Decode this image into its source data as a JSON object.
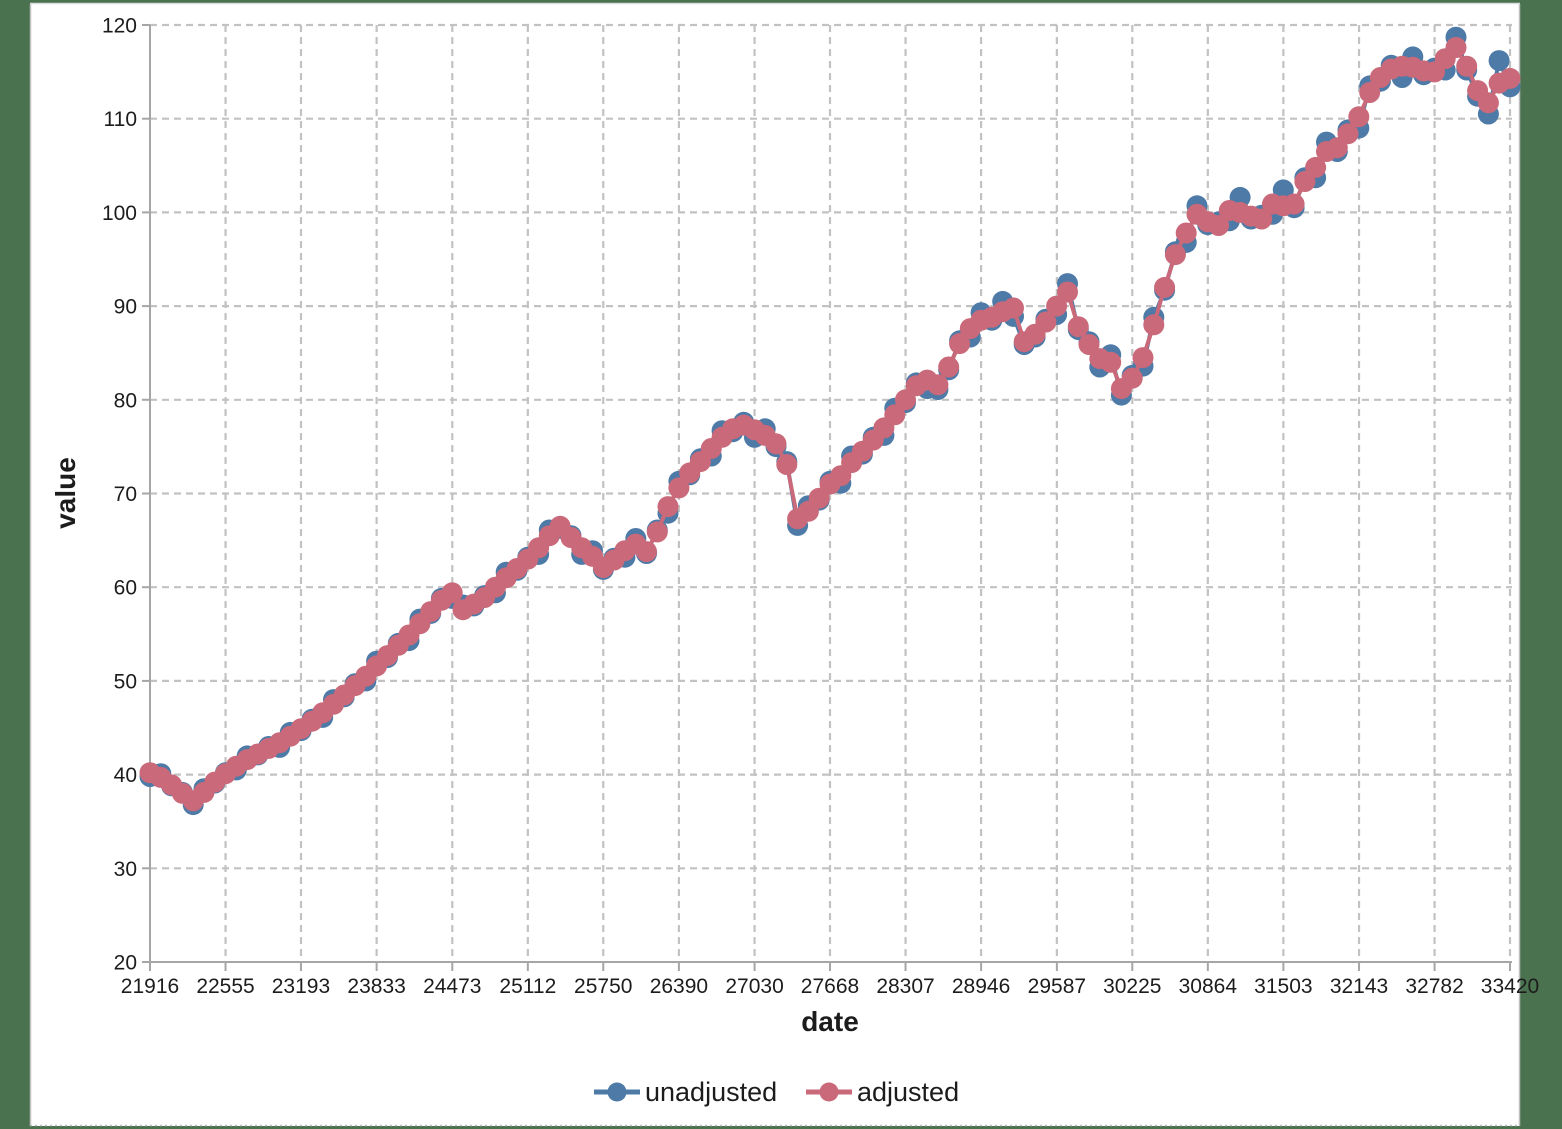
{
  "page": {
    "background_color": "#4a724f",
    "canvas_color": "#ffffff",
    "gridline_color": "#c2c2c2",
    "axis_color": "#a6a6a6"
  },
  "legend": {
    "items": [
      {
        "label": "unadjusted",
        "color": "#4d7aa6",
        "icon": "line-dot-marker"
      },
      {
        "label": "adjusted",
        "color": "#c9697a",
        "icon": "line-dot-marker"
      }
    ]
  },
  "chart_data": {
    "type": "line",
    "title": "",
    "xlabel": "date",
    "ylabel": "value",
    "xlim": [
      21916,
      33420
    ],
    "ylim": [
      20,
      120
    ],
    "grid": true,
    "legend_position": "bottom",
    "x_ticks": [
      21916,
      22555,
      23193,
      23833,
      24473,
      25112,
      25750,
      26390,
      27030,
      27668,
      28307,
      28946,
      29587,
      30225,
      30864,
      31503,
      32143,
      32782,
      33420
    ],
    "y_ticks": [
      20,
      30,
      40,
      50,
      60,
      70,
      80,
      90,
      100,
      110,
      120
    ],
    "x": [
      21916,
      22007,
      22099,
      22190,
      22281,
      22373,
      22464,
      22555,
      22646,
      22738,
      22829,
      22920,
      23012,
      23103,
      23194,
      23286,
      23377,
      23468,
      23559,
      23651,
      23742,
      23833,
      23925,
      24016,
      24107,
      24199,
      24290,
      24381,
      24472,
      24564,
      24655,
      24746,
      24838,
      24929,
      25020,
      25112,
      25203,
      25294,
      25385,
      25477,
      25568,
      25659,
      25751,
      25842,
      25933,
      26025,
      26116,
      26207,
      26298,
      26390,
      26481,
      26572,
      26664,
      26755,
      26846,
      26938,
      27029,
      27120,
      27211,
      27303,
      27394,
      27485,
      27577,
      27668,
      27759,
      27851,
      27942,
      28033,
      28124,
      28216,
      28307,
      28398,
      28490,
      28581,
      28672,
      28764,
      28855,
      28946,
      29037,
      29129,
      29220,
      29311,
      29403,
      29494,
      29585,
      29677,
      29768,
      29859,
      29950,
      30042,
      30133,
      30224,
      30316,
      30407,
      30498,
      30590,
      30681,
      30772,
      30863,
      30955,
      31046,
      31137,
      31229,
      31320,
      31411,
      31502,
      31594,
      31685,
      31776,
      31868,
      31959,
      32050,
      32141,
      32233,
      32324,
      32415,
      32507,
      32598,
      32689,
      32781,
      32872,
      32963,
      33054,
      33146,
      33237,
      33328,
      33420
    ],
    "series": [
      {
        "name": "unadjusted",
        "color": "#4d7aa6",
        "values": [
          39.8,
          40.1,
          38.8,
          38.1,
          36.8,
          38.5,
          39.1,
          40.2,
          40.5,
          42.0,
          42.1,
          43.0,
          42.9,
          44.5,
          44.7,
          45.9,
          46.1,
          48.0,
          48.3,
          49.7,
          50.0,
          52.1,
          52.5,
          54.0,
          54.3,
          56.6,
          57.2,
          58.8,
          58.8,
          58.1,
          58.0,
          59.1,
          59.4,
          61.6,
          61.8,
          63.2,
          63.5,
          66.1,
          66.3,
          65.5,
          63.5,
          63.9,
          61.9,
          63.1,
          63.2,
          65.2,
          63.6,
          66.1,
          67.9,
          71.3,
          72.0,
          73.7,
          74.0,
          76.7,
          76.6,
          77.6,
          76.0,
          76.9,
          75.0,
          73.4,
          66.6,
          68.7,
          69.3,
          71.3,
          71.1,
          74.0,
          74.2,
          76.0,
          76.2,
          79.1,
          79.7,
          81.8,
          81.2,
          81.1,
          83.2,
          86.3,
          86.7,
          89.3,
          88.5,
          90.5,
          88.9,
          85.9,
          86.7,
          88.6,
          89.1,
          92.4,
          87.5,
          86.2,
          83.5,
          84.8,
          80.5,
          82.6,
          83.6,
          88.8,
          91.7,
          95.8,
          96.8,
          100.7,
          98.7,
          99.0,
          99.1,
          101.6,
          99.3,
          99.7,
          99.8,
          102.4,
          100.5,
          103.7,
          103.7,
          107.5,
          106.5,
          108.8,
          109.0,
          113.5,
          114.0,
          115.7,
          114.4,
          116.6,
          114.7,
          115.4,
          115.2,
          118.7,
          115.2,
          112.4,
          110.5,
          116.2,
          113.4
        ]
      },
      {
        "name": "adjusted",
        "color": "#c9697a",
        "values": [
          40.2,
          39.7,
          38.9,
          38.0,
          37.2,
          38.1,
          39.2,
          40.1,
          40.9,
          41.6,
          42.2,
          42.8,
          43.4,
          44.1,
          44.9,
          45.7,
          46.6,
          47.5,
          48.5,
          49.5,
          50.5,
          51.6,
          52.7,
          53.8,
          54.9,
          56.1,
          57.4,
          58.6,
          59.4,
          57.6,
          58.2,
          58.9,
          60.0,
          61.0,
          62.0,
          63.0,
          64.2,
          65.5,
          66.5,
          65.3,
          64.2,
          63.3,
          62.1,
          62.9,
          63.9,
          64.6,
          63.8,
          65.9,
          68.6,
          70.6,
          72.2,
          73.4,
          74.8,
          76.0,
          76.9,
          77.3,
          76.8,
          76.2,
          75.3,
          73.1,
          67.3,
          68.1,
          69.5,
          71.0,
          71.9,
          73.3,
          74.5,
          75.7,
          77.0,
          78.4,
          80.0,
          81.5,
          82.1,
          81.6,
          83.5,
          86.0,
          87.6,
          88.5,
          88.8,
          89.4,
          89.8,
          86.2,
          87.0,
          88.3,
          90.0,
          91.5,
          87.8,
          85.9,
          84.4,
          84.0,
          81.2,
          82.3,
          84.5,
          88.0,
          92.0,
          95.5,
          97.8,
          99.8,
          99.0,
          98.6,
          100.2,
          100.0,
          99.6,
          99.3,
          100.9,
          100.7,
          100.9,
          103.3,
          104.8,
          106.5,
          106.9,
          108.4,
          110.2,
          112.8,
          114.4,
          115.3,
          115.6,
          115.5,
          115.1,
          115.0,
          116.4,
          117.6,
          115.6,
          113.0,
          111.7,
          113.8,
          114.3
        ]
      }
    ]
  }
}
